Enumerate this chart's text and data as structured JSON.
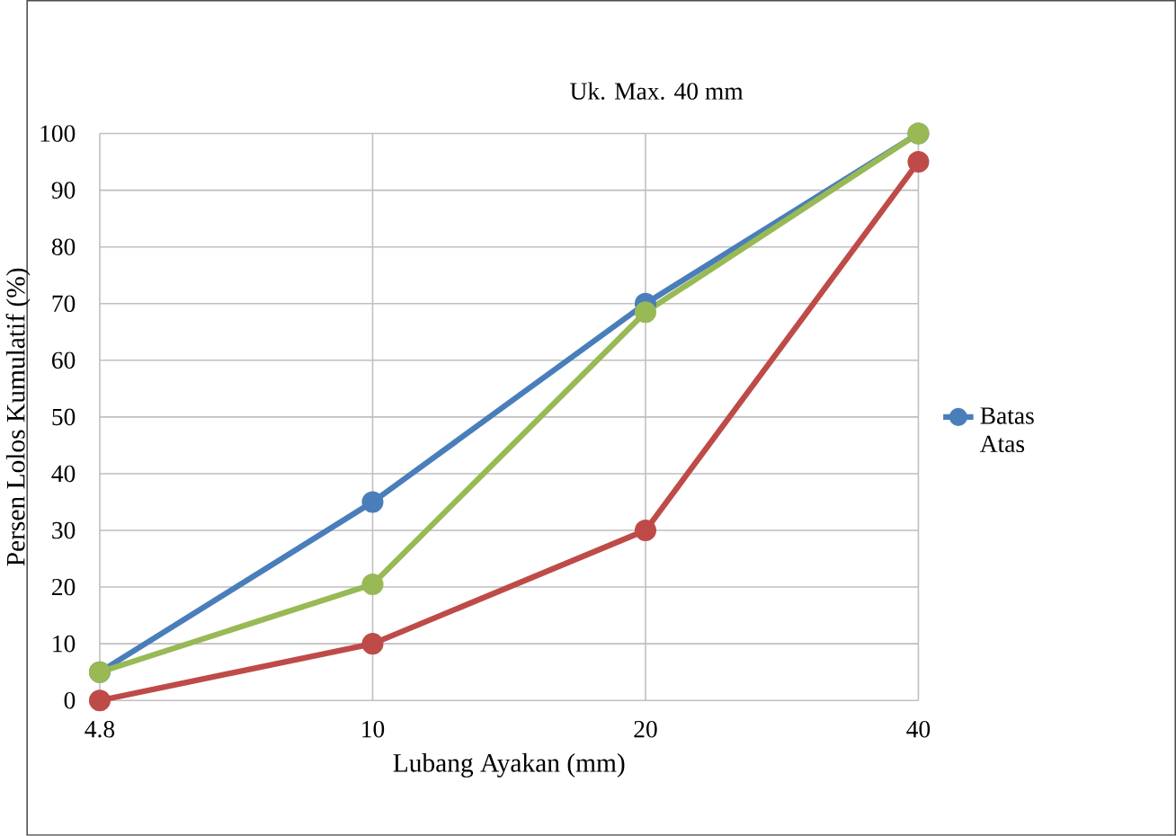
{
  "chart_data": {
    "type": "line",
    "title": "Uk. Max. 40 mm",
    "xlabel": "Lubang Ayakan (mm)",
    "ylabel": "Persen Lolos Kumulatif (%)",
    "categories": [
      "4.8",
      "10",
      "20",
      "40"
    ],
    "series": [
      {
        "name": "Batas Atas",
        "color": "#4a7ebb",
        "values": [
          5,
          35,
          70,
          100
        ]
      },
      {
        "color": "#be4b48",
        "values": [
          0,
          10,
          30,
          95
        ]
      },
      {
        "color": "#98b954",
        "values": [
          5,
          20.5,
          68.5,
          100
        ]
      }
    ],
    "ylim": [
      0,
      100
    ],
    "yticks": [
      0,
      10,
      20,
      30,
      40,
      50,
      60,
      70,
      80,
      90,
      100
    ],
    "grid": true,
    "legend": "right",
    "marker": "circle",
    "line_style": "solid"
  }
}
